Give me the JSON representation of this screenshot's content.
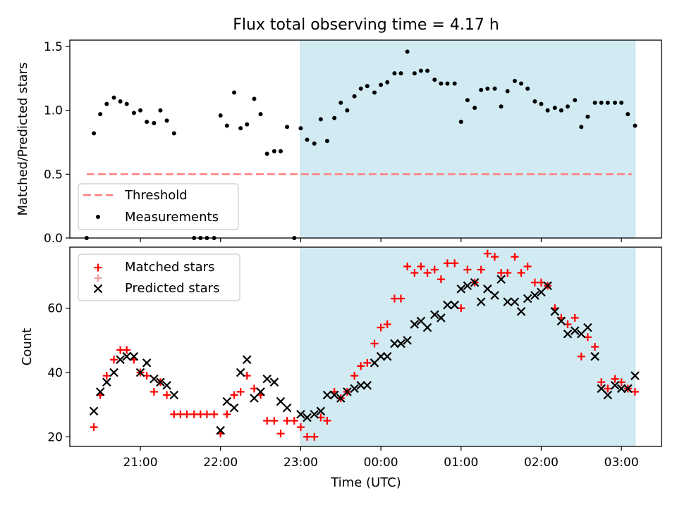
{
  "chart_data": [
    {
      "type": "scatter",
      "title": "Flux total observing time = 4.17 h",
      "xlabel": "",
      "ylabel": "Matched/Predicted stars",
      "ylim": [
        0,
        1.55
      ],
      "yticks": [
        "0.0",
        "0.5",
        "1.0",
        "1.5"
      ],
      "ytick_values": [
        0,
        0.5,
        1.0,
        1.5
      ],
      "xtick_values": [
        21,
        22,
        23,
        24,
        25,
        26,
        27
      ],
      "show_xtick_labels": false,
      "shaded_span_hours": [
        23.0,
        27.17
      ],
      "shade_color": "#add8e6",
      "legend_position": "lower-left",
      "threshold": {
        "name": "Threshold",
        "y": 0.5,
        "x": [
          20.33,
          27.13
        ],
        "color": "#ff7f7f"
      },
      "series": [
        {
          "name": "Measurements",
          "color": "#000000",
          "marker": "dot",
          "points": [
            [
              20.33,
              0.0
            ],
            [
              20.42,
              0.82
            ],
            [
              20.5,
              0.97
            ],
            [
              20.58,
              1.05
            ],
            [
              20.67,
              1.1
            ],
            [
              20.75,
              1.07
            ],
            [
              20.83,
              1.05
            ],
            [
              20.92,
              0.98
            ],
            [
              21.0,
              1.0
            ],
            [
              21.08,
              0.91
            ],
            [
              21.17,
              0.9
            ],
            [
              21.25,
              1.0
            ],
            [
              21.33,
              0.92
            ],
            [
              21.42,
              0.82
            ],
            [
              21.67,
              0.0
            ],
            [
              21.75,
              0.0
            ],
            [
              21.83,
              0.0
            ],
            [
              21.92,
              0.0
            ],
            [
              22.0,
              0.96
            ],
            [
              22.08,
              0.88
            ],
            [
              22.17,
              1.14
            ],
            [
              22.25,
              0.86
            ],
            [
              22.33,
              0.89
            ],
            [
              22.42,
              1.09
            ],
            [
              22.5,
              0.97
            ],
            [
              22.58,
              0.66
            ],
            [
              22.67,
              0.68
            ],
            [
              22.75,
              0.68
            ],
            [
              22.83,
              0.87
            ],
            [
              22.92,
              0.0
            ],
            [
              23.0,
              0.86
            ],
            [
              23.08,
              0.77
            ],
            [
              23.17,
              0.74
            ],
            [
              23.25,
              0.93
            ],
            [
              23.33,
              0.76
            ],
            [
              23.42,
              0.94
            ],
            [
              23.5,
              1.06
            ],
            [
              23.58,
              1.0
            ],
            [
              23.67,
              1.11
            ],
            [
              23.75,
              1.17
            ],
            [
              23.83,
              1.19
            ],
            [
              23.92,
              1.14
            ],
            [
              24.0,
              1.2
            ],
            [
              24.08,
              1.22
            ],
            [
              24.17,
              1.29
            ],
            [
              24.25,
              1.29
            ],
            [
              24.33,
              1.46
            ],
            [
              24.42,
              1.29
            ],
            [
              24.5,
              1.31
            ],
            [
              24.58,
              1.31
            ],
            [
              24.67,
              1.24
            ],
            [
              24.75,
              1.21
            ],
            [
              24.83,
              1.21
            ],
            [
              24.92,
              1.21
            ],
            [
              25.0,
              0.91
            ],
            [
              25.08,
              1.08
            ],
            [
              25.17,
              1.02
            ],
            [
              25.25,
              1.16
            ],
            [
              25.33,
              1.17
            ],
            [
              25.42,
              1.17
            ],
            [
              25.5,
              1.03
            ],
            [
              25.58,
              1.15
            ],
            [
              25.67,
              1.23
            ],
            [
              25.75,
              1.21
            ],
            [
              25.83,
              1.17
            ],
            [
              25.92,
              1.07
            ],
            [
              26.0,
              1.05
            ],
            [
              26.08,
              1.0
            ],
            [
              26.17,
              1.02
            ],
            [
              26.25,
              1.0
            ],
            [
              26.33,
              1.03
            ],
            [
              26.42,
              1.08
            ],
            [
              26.5,
              0.87
            ],
            [
              26.58,
              0.95
            ],
            [
              26.67,
              1.06
            ],
            [
              26.75,
              1.06
            ],
            [
              26.83,
              1.06
            ],
            [
              26.92,
              1.06
            ],
            [
              27.0,
              1.06
            ],
            [
              27.08,
              0.97
            ],
            [
              27.17,
              0.88
            ]
          ]
        }
      ]
    },
    {
      "type": "scatter",
      "title": "",
      "xlabel": "Time (UTC)",
      "ylabel": "Count",
      "ylim": [
        17,
        79
      ],
      "yticks": [
        "20",
        "40",
        "60"
      ],
      "ytick_values": [
        20,
        40,
        60
      ],
      "xtick_values": [
        21,
        22,
        23,
        24,
        25,
        26,
        27
      ],
      "xticks": [
        "21:00",
        "22:00",
        "23:00",
        "00:00",
        "01:00",
        "02:00",
        "03:00"
      ],
      "shaded_span_hours": [
        23.0,
        27.17
      ],
      "shade_color": "#add8e6",
      "legend_position": "top-left",
      "series": [
        {
          "name": "Matched stars",
          "color": "#ff0000",
          "marker": "plus",
          "points": [
            [
              20.42,
              23
            ],
            [
              20.5,
              33
            ],
            [
              20.58,
              39
            ],
            [
              20.67,
              44
            ],
            [
              20.75,
              47
            ],
            [
              20.83,
              47
            ],
            [
              20.92,
              44
            ],
            [
              21.0,
              40
            ],
            [
              21.08,
              39
            ],
            [
              21.17,
              34
            ],
            [
              21.25,
              37
            ],
            [
              21.33,
              33
            ],
            [
              21.42,
              27
            ],
            [
              21.5,
              27
            ],
            [
              21.58,
              27
            ],
            [
              21.67,
              27
            ],
            [
              21.75,
              27
            ],
            [
              21.83,
              27
            ],
            [
              21.92,
              27
            ],
            [
              22.0,
              21
            ],
            [
              22.08,
              27
            ],
            [
              22.17,
              33
            ],
            [
              22.25,
              34
            ],
            [
              22.33,
              39
            ],
            [
              22.42,
              35
            ],
            [
              22.5,
              33
            ],
            [
              22.58,
              25
            ],
            [
              22.67,
              25
            ],
            [
              22.75,
              21
            ],
            [
              22.83,
              25
            ],
            [
              22.92,
              25
            ],
            [
              23.0,
              23
            ],
            [
              23.08,
              20
            ],
            [
              23.17,
              20
            ],
            [
              23.25,
              26
            ],
            [
              23.33,
              25
            ],
            [
              23.42,
              34
            ],
            [
              23.5,
              32
            ],
            [
              23.58,
              34
            ],
            [
              23.67,
              39
            ],
            [
              23.75,
              42
            ],
            [
              23.83,
              43
            ],
            [
              23.92,
              49
            ],
            [
              24.0,
              54
            ],
            [
              24.08,
              55
            ],
            [
              24.17,
              63
            ],
            [
              24.25,
              63
            ],
            [
              24.33,
              73
            ],
            [
              24.42,
              71
            ],
            [
              24.5,
              73
            ],
            [
              24.58,
              71
            ],
            [
              24.67,
              72
            ],
            [
              24.75,
              69
            ],
            [
              24.83,
              74
            ],
            [
              24.92,
              74
            ],
            [
              25.0,
              60
            ],
            [
              25.08,
              72
            ],
            [
              25.17,
              68
            ],
            [
              25.25,
              72
            ],
            [
              25.33,
              77
            ],
            [
              25.42,
              76
            ],
            [
              25.5,
              71
            ],
            [
              25.58,
              71
            ],
            [
              25.67,
              76
            ],
            [
              25.75,
              71
            ],
            [
              25.83,
              73
            ],
            [
              25.92,
              68
            ],
            [
              26.0,
              68
            ],
            [
              26.08,
              67
            ],
            [
              26.17,
              60
            ],
            [
              26.25,
              57
            ],
            [
              26.33,
              55
            ],
            [
              26.42,
              57
            ],
            [
              26.5,
              45
            ],
            [
              26.58,
              51
            ],
            [
              26.67,
              48
            ],
            [
              26.75,
              37
            ],
            [
              26.83,
              35
            ],
            [
              26.92,
              38
            ],
            [
              27.0,
              37
            ],
            [
              27.08,
              35
            ],
            [
              27.17,
              34
            ]
          ]
        },
        {
          "name": "Predicted stars",
          "color": "#000000",
          "marker": "x",
          "points": [
            [
              20.42,
              28
            ],
            [
              20.5,
              34
            ],
            [
              20.58,
              37
            ],
            [
              20.67,
              40
            ],
            [
              20.75,
              44
            ],
            [
              20.83,
              45
            ],
            [
              20.92,
              45
            ],
            [
              21.0,
              40
            ],
            [
              21.08,
              43
            ],
            [
              21.17,
              38
            ],
            [
              21.25,
              37
            ],
            [
              21.33,
              36
            ],
            [
              21.42,
              33
            ],
            [
              22.0,
              22
            ],
            [
              22.08,
              31
            ],
            [
              22.17,
              29
            ],
            [
              22.25,
              40
            ],
            [
              22.33,
              44
            ],
            [
              22.42,
              32
            ],
            [
              22.5,
              34
            ],
            [
              22.58,
              38
            ],
            [
              22.67,
              37
            ],
            [
              22.75,
              31
            ],
            [
              22.83,
              29
            ],
            [
              23.0,
              27
            ],
            [
              23.08,
              26
            ],
            [
              23.17,
              27
            ],
            [
              23.25,
              28
            ],
            [
              23.33,
              33
            ],
            [
              23.42,
              33
            ],
            [
              23.5,
              32
            ],
            [
              23.58,
              34
            ],
            [
              23.67,
              35
            ],
            [
              23.75,
              36
            ],
            [
              23.83,
              36
            ],
            [
              23.92,
              43
            ],
            [
              24.0,
              45
            ],
            [
              24.08,
              45
            ],
            [
              24.17,
              49
            ],
            [
              24.25,
              49
            ],
            [
              24.33,
              50
            ],
            [
              24.42,
              55
            ],
            [
              24.5,
              56
            ],
            [
              24.58,
              54
            ],
            [
              24.67,
              58
            ],
            [
              24.75,
              57
            ],
            [
              24.83,
              61
            ],
            [
              24.92,
              61
            ],
            [
              25.0,
              66
            ],
            [
              25.08,
              67
            ],
            [
              25.17,
              68
            ],
            [
              25.25,
              62
            ],
            [
              25.33,
              66
            ],
            [
              25.42,
              64
            ],
            [
              25.5,
              69
            ],
            [
              25.58,
              62
            ],
            [
              25.67,
              62
            ],
            [
              25.75,
              59
            ],
            [
              25.83,
              63
            ],
            [
              25.92,
              64
            ],
            [
              26.0,
              65
            ],
            [
              26.08,
              67
            ],
            [
              26.17,
              59
            ],
            [
              26.25,
              56
            ],
            [
              26.33,
              52
            ],
            [
              26.42,
              53
            ],
            [
              26.5,
              52
            ],
            [
              26.58,
              54
            ],
            [
              26.67,
              45
            ],
            [
              26.75,
              35
            ],
            [
              26.83,
              33
            ],
            [
              26.92,
              36
            ],
            [
              27.0,
              35
            ],
            [
              27.08,
              35
            ],
            [
              27.17,
              39
            ]
          ]
        }
      ]
    }
  ]
}
